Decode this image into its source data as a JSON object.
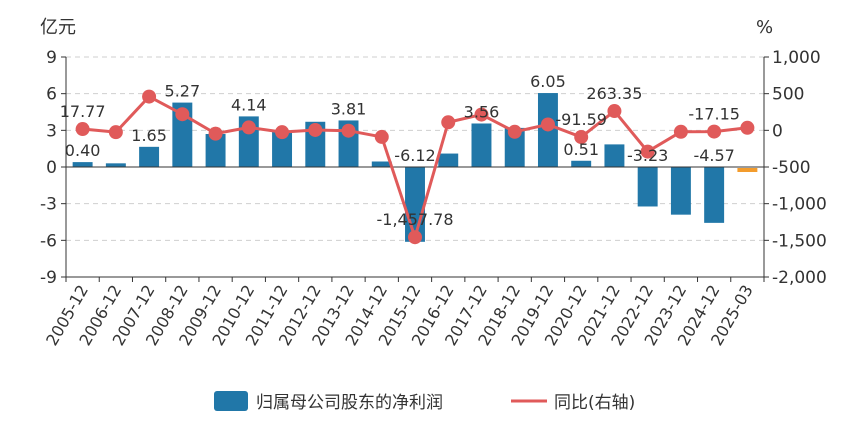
{
  "chart_data": {
    "type": "bar+line",
    "left_unit": "亿元",
    "right_unit": "%",
    "categories": [
      "2005-12",
      "2006-12",
      "2007-12",
      "2008-12",
      "2009-12",
      "2010-12",
      "2011-12",
      "2012-12",
      "2013-12",
      "2014-12",
      "2015-12",
      "2016-12",
      "2017-12",
      "2018-12",
      "2019-12",
      "2020-12",
      "2021-12",
      "2022-12",
      "2023-12",
      "2024-12",
      "2025-03"
    ],
    "left_ticks": [
      "9",
      "6",
      "3",
      "0",
      "-3",
      "-6",
      "-9"
    ],
    "right_ticks": [
      "1,000",
      "500",
      "0",
      "-500",
      "-1,000",
      "-1,500",
      "-2,000"
    ],
    "ylim_left": [
      -9,
      9
    ],
    "ylim_right": [
      -2000,
      1000
    ],
    "series": [
      {
        "name": "归属母公司股东的净利润",
        "kind": "bar",
        "axis": "left",
        "color": "#2177a8",
        "highlight_color": "#f39c2d",
        "values": [
          0.4,
          0.3,
          1.65,
          5.27,
          2.7,
          4.14,
          3.0,
          3.7,
          3.81,
          0.45,
          -6.12,
          1.1,
          3.56,
          3.2,
          6.05,
          0.51,
          1.85,
          -3.23,
          -3.9,
          -4.57,
          -0.25
        ]
      },
      {
        "name": "同比(右轴)",
        "kind": "line",
        "axis": "right",
        "color": "#e05a5a",
        "values": [
          17.77,
          -25,
          460,
          220,
          -45,
          40,
          -25,
          5,
          -5,
          -90,
          -1457.78,
          110,
          215,
          -20,
          80,
          -91.59,
          263.35,
          -290,
          -20,
          -17.15,
          35
        ]
      }
    ],
    "bar_labels": [
      {
        "index": 0,
        "text": "0.40"
      },
      {
        "index": 2,
        "text": "1.65"
      },
      {
        "index": 3,
        "text": "5.27"
      },
      {
        "index": 5,
        "text": "4.14"
      },
      {
        "index": 8,
        "text": "3.81"
      },
      {
        "index": 10,
        "text": "-6.12"
      },
      {
        "index": 12,
        "text": "3.56"
      },
      {
        "index": 14,
        "text": "6.05"
      },
      {
        "index": 15,
        "text": "0.51"
      },
      {
        "index": 17,
        "text": "-3.23"
      },
      {
        "index": 19,
        "text": "-4.57"
      }
    ],
    "line_labels": [
      {
        "index": 0,
        "text": "17.77"
      },
      {
        "index": 10,
        "text": "-1,457.78"
      },
      {
        "index": 15,
        "text": "-91.59"
      },
      {
        "index": 16,
        "text": "263.35"
      },
      {
        "index": 19,
        "text": "-17.15"
      }
    ],
    "legend": [
      {
        "label": "归属母公司股东的净利润",
        "kind": "bar",
        "color": "#2177a8"
      },
      {
        "label": "同比(右轴)",
        "kind": "line",
        "color": "#e05a5a"
      }
    ]
  }
}
